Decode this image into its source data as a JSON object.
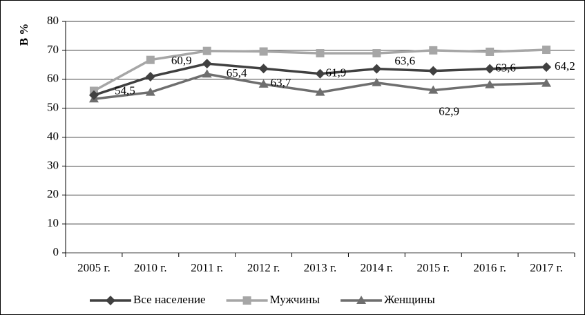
{
  "chart_data": {
    "type": "line",
    "ylabel": "В %",
    "categories": [
      "2005 г.",
      "2010 г.",
      "2011 г.",
      "2012 г.",
      "2013 г.",
      "2014 г.",
      "2015 г.",
      "2016 г.",
      "2017 г."
    ],
    "series": [
      {
        "name": "Все население",
        "color": "#404040",
        "marker": "diamond",
        "values": [
          54.5,
          60.9,
          65.4,
          63.7,
          61.9,
          63.6,
          62.9,
          63.6,
          64.2
        ],
        "value_labels": [
          "54,5",
          "60,9",
          "65,4",
          "63,7",
          "61,9",
          "63,6",
          "62,9",
          "63,6",
          "64,2"
        ]
      },
      {
        "name": "Мужчины",
        "color": "#a6a6a6",
        "marker": "square",
        "values": [
          56,
          66.7,
          69.8,
          69.6,
          69,
          69,
          70,
          69.5,
          70.2
        ]
      },
      {
        "name": "Женщины",
        "color": "#6e6e6e",
        "marker": "triangle",
        "values": [
          53.2,
          55.5,
          61.8,
          58.3,
          55.5,
          58.8,
          56.2,
          58.1,
          58.6
        ]
      }
    ],
    "ylim": [
      0,
      80
    ],
    "yticks": [
      0,
      10,
      20,
      30,
      40,
      50,
      60,
      70,
      80
    ],
    "grid": true,
    "legend": "bottom"
  }
}
